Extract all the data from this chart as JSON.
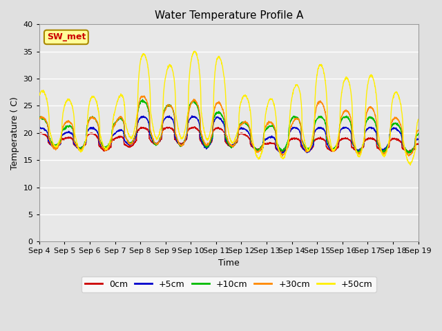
{
  "title": "Water Temperature Profile A",
  "xlabel": "Time",
  "ylabel": "Temperature ( C)",
  "ylim": [
    0,
    40
  ],
  "yticks": [
    0,
    5,
    10,
    15,
    20,
    25,
    30,
    35,
    40
  ],
  "background_color": "#e0e0e0",
  "plot_bg_color": "#e8e8e8",
  "annotation_text": "SW_met",
  "annotation_color": "#cc0000",
  "annotation_bg": "#ffff99",
  "annotation_border": "#aa8800",
  "line_colors": {
    "0cm": "#cc0000",
    "+5cm": "#0000cc",
    "+10cm": "#00bb00",
    "+30cm": "#ff8800",
    "+50cm": "#ffee00"
  },
  "legend_labels": [
    "0cm",
    "+5cm",
    "+10cm",
    "+30cm",
    "+50cm"
  ],
  "x_tick_labels": [
    "Sep 4",
    "Sep 5",
    "Sep 6",
    "Sep 7",
    "Sep 8",
    "Sep 9",
    "Sep 10",
    "Sep 11",
    "Sep 12",
    "Sep 13",
    "Sep 14",
    "Sep 15",
    "Sep 16",
    "Sep 17",
    "Sep 18",
    "Sep 19"
  ],
  "n_days": 15,
  "pts_per_day": 144
}
